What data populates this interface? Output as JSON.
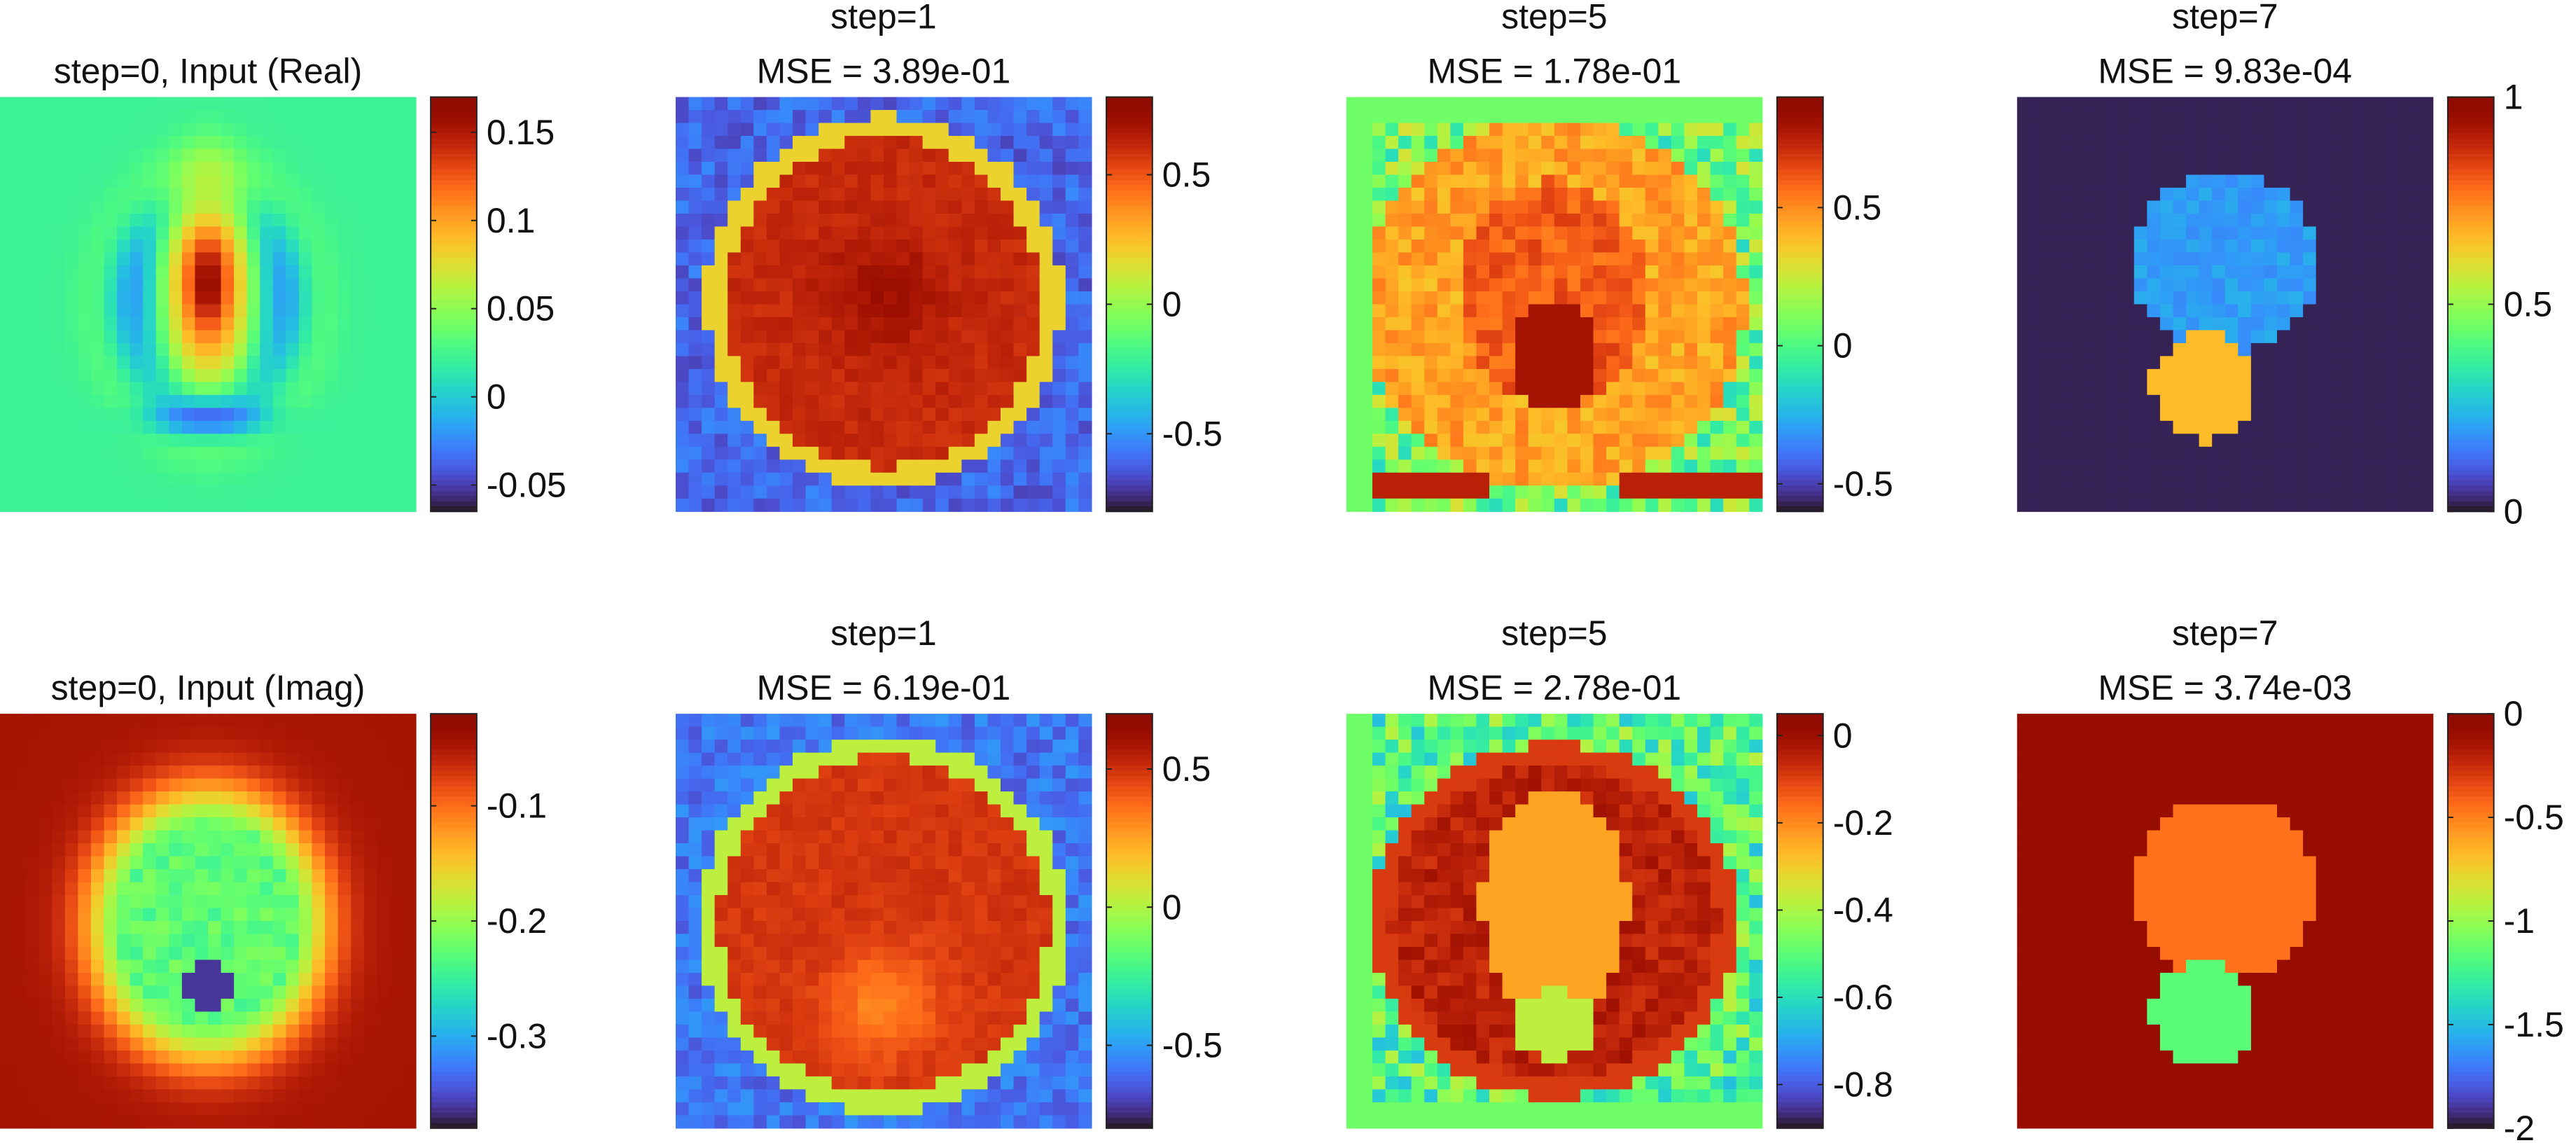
{
  "chart_data": [
    {
      "type": "heatmap",
      "row": 1,
      "col": 1,
      "title_lines": [
        "step=0, Input (Real)"
      ],
      "clim": [
        -0.065,
        0.17
      ],
      "colorbar_ticks": [
        -0.05,
        0,
        0.05,
        0.1,
        0.15
      ],
      "colorbar_tick_labels": [
        "-0.05",
        "0",
        "0.05",
        "0.1",
        "0.15"
      ],
      "pattern": "input-real"
    },
    {
      "type": "heatmap",
      "row": 1,
      "col": 2,
      "title_lines": [
        "step=1",
        "MSE = 3.89e-01"
      ],
      "clim": [
        -0.8,
        0.8
      ],
      "colorbar_ticks": [
        -0.5,
        0,
        0.5
      ],
      "colorbar_tick_labels": [
        "-0.5",
        "0",
        "0.5"
      ],
      "pattern": "ring-disk"
    },
    {
      "type": "heatmap",
      "row": 1,
      "col": 3,
      "title_lines": [
        "step=5",
        "MSE = 1.78e-01"
      ],
      "clim": [
        -0.6,
        0.9
      ],
      "colorbar_ticks": [
        -0.5,
        0,
        0.5
      ],
      "colorbar_tick_labels": [
        "-0.5",
        "0",
        "0.5"
      ],
      "pattern": "noisy-head-real"
    },
    {
      "type": "heatmap",
      "row": 1,
      "col": 4,
      "title_lines": [
        "step=7",
        "MSE = 9.83e-04"
      ],
      "clim": [
        0,
        1
      ],
      "colorbar_ticks": [
        0,
        0.5,
        1
      ],
      "colorbar_tick_labels": [
        "0",
        "0.5",
        "1"
      ],
      "pattern": "ground-truth-real"
    },
    {
      "type": "heatmap",
      "row": 2,
      "col": 1,
      "title_lines": [
        "step=0, Input (Imag)"
      ],
      "clim": [
        -0.38,
        -0.02
      ],
      "colorbar_ticks": [
        -0.3,
        -0.2,
        -0.1
      ],
      "colorbar_tick_labels": [
        "-0.3",
        "-0.2",
        "-0.1"
      ],
      "pattern": "input-imag"
    },
    {
      "type": "heatmap",
      "row": 2,
      "col": 2,
      "title_lines": [
        "step=1",
        "MSE = 6.19e-01"
      ],
      "clim": [
        -0.8,
        0.7
      ],
      "colorbar_ticks": [
        -0.5,
        0,
        0.5
      ],
      "colorbar_tick_labels": [
        "-0.5",
        "0",
        "0.5"
      ],
      "pattern": "ring-disk-imag"
    },
    {
      "type": "heatmap",
      "row": 2,
      "col": 3,
      "title_lines": [
        "step=5",
        "MSE = 2.78e-01"
      ],
      "clim": [
        -0.9,
        0.05
      ],
      "colorbar_ticks": [
        -0.8,
        -0.6,
        -0.4,
        -0.2,
        0
      ],
      "colorbar_tick_labels": [
        "-0.8",
        "-0.6",
        "-0.4",
        "-0.2",
        "0"
      ],
      "pattern": "noisy-head-imag"
    },
    {
      "type": "heatmap",
      "row": 2,
      "col": 4,
      "title_lines": [
        "step=7",
        "MSE = 3.74e-03"
      ],
      "clim": [
        -2,
        0
      ],
      "colorbar_ticks": [
        -2,
        -1.5,
        -1,
        -0.5,
        0
      ],
      "colorbar_tick_labels": [
        "-2",
        "-1.5",
        "-1",
        "-0.5",
        "0"
      ],
      "pattern": "ground-truth-imag"
    }
  ]
}
